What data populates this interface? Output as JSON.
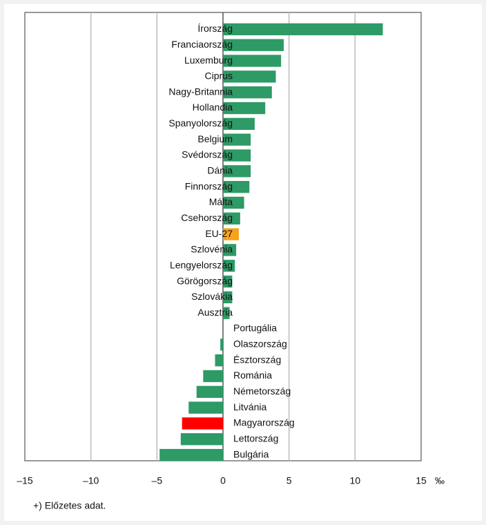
{
  "chart_data": {
    "type": "barh",
    "categories": [
      "Írország",
      "Franciaország",
      "Luxemburg",
      "Ciprus",
      "Nagy-Britannia",
      "Hollandia",
      "Spanyolország",
      "Belgium",
      "Svédország",
      "Dánia",
      "Finnország",
      "Málta",
      "Csehország",
      "EU-27",
      "Szlovénia",
      "Lengyelország",
      "Görögország",
      "Szlovákia",
      "Ausztria",
      "Portugália",
      "Olaszország",
      "Észtország",
      "Románia",
      "Németország",
      "Litvánia",
      "Magyarország",
      "Lettország",
      "Bulgária"
    ],
    "values": [
      12.1,
      4.6,
      4.4,
      4.0,
      3.7,
      3.2,
      2.4,
      2.1,
      2.1,
      2.1,
      2.0,
      1.6,
      1.3,
      1.2,
      1.0,
      0.9,
      0.7,
      0.7,
      0.5,
      0.0,
      -0.2,
      -0.6,
      -1.5,
      -2.0,
      -2.6,
      -3.1,
      -3.2,
      -4.8
    ],
    "colors": [
      "#2e9a66",
      "#2e9a66",
      "#2e9a66",
      "#2e9a66",
      "#2e9a66",
      "#2e9a66",
      "#2e9a66",
      "#2e9a66",
      "#2e9a66",
      "#2e9a66",
      "#2e9a66",
      "#2e9a66",
      "#2e9a66",
      "#f7a21b",
      "#2e9a66",
      "#2e9a66",
      "#2e9a66",
      "#2e9a66",
      "#2e9a66",
      "#2e9a66",
      "#2e9a66",
      "#2e9a66",
      "#2e9a66",
      "#2e9a66",
      "#2e9a66",
      "#ff0000",
      "#2e9a66",
      "#2e9a66"
    ],
    "xlim": [
      -15,
      15
    ],
    "xticks": [
      {
        "value": -15,
        "label": "–15"
      },
      {
        "value": -10,
        "label": "–10"
      },
      {
        "value": -5,
        "label": "–5"
      },
      0,
      5,
      10,
      15
    ],
    "x_unit": "‰",
    "grid": true,
    "footnote": "+) Előzetes adat."
  }
}
